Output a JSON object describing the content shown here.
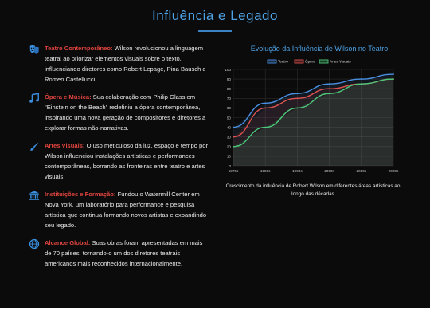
{
  "page": {
    "title": "Influência e Legado"
  },
  "points": [
    {
      "icon": "theater-masks-icon",
      "heading": "Teatro Contemporâneo:",
      "text": "Wilson revolucionou a linguagem teatral ao priorizar elementos visuais sobre o texto, influenciando diretores como Robert Lepage, Pina Bausch e Romeo Castellucci."
    },
    {
      "icon": "music-note-icon",
      "heading": "Ópera e Música:",
      "text": "Sua colaboração com Philip Glass em \"Einstein on the Beach\" redefiniu a ópera contemporânea, inspirando uma nova geração de compositores e diretores a explorar formas não-narrativas."
    },
    {
      "icon": "paint-brush-icon",
      "heading": "Artes Visuais:",
      "text": "O uso meticuloso da luz, espaço e tempo por Wilson influenciou instalações artísticas e performances contemporâneas, borrando as fronteiras entre teatro e artes visuais."
    },
    {
      "icon": "university-icon",
      "heading": "Instituições e Formação:",
      "text": "Fundou o Watermill Center em Nova York, um laboratório para performance e pesquisa artística que continua formando novos artistas e expandindo seu legado."
    },
    {
      "icon": "globe-icon",
      "heading": "Alcance Global:",
      "text": "Suas obras foram apresentadas em mais de 70 países, tornando-o um dos diretores teatrais americanos mais reconhecidos internacionalmente."
    }
  ],
  "chart_data": {
    "type": "line",
    "title": "Evolução da Influência de Wilson no Teatro",
    "caption": "Crescimento da influência de Robert Wilson em diferentes áreas artísticas ao longo das décadas",
    "categories": [
      "1970s",
      "1980s",
      "1990s",
      "2000s",
      "2010s",
      "2020s"
    ],
    "ylim": [
      0,
      100
    ],
    "yticks": [
      0,
      10,
      20,
      30,
      40,
      50,
      60,
      70,
      80,
      90,
      100
    ],
    "legend_position": "top",
    "grid": true,
    "series": [
      {
        "name": "Teatro",
        "color": "#4a90e2",
        "values": [
          40,
          65,
          75,
          85,
          90,
          95
        ]
      },
      {
        "name": "Ópera",
        "color": "#e0524f",
        "values": [
          30,
          60,
          70,
          80,
          85,
          90
        ]
      },
      {
        "name": "Artes Visuais",
        "color": "#4cc97a",
        "values": [
          20,
          40,
          60,
          75,
          85,
          90
        ]
      }
    ]
  },
  "colors": {
    "accent": "#e0443e",
    "title": "#4ea3e6",
    "background": "#0b0b0b"
  }
}
